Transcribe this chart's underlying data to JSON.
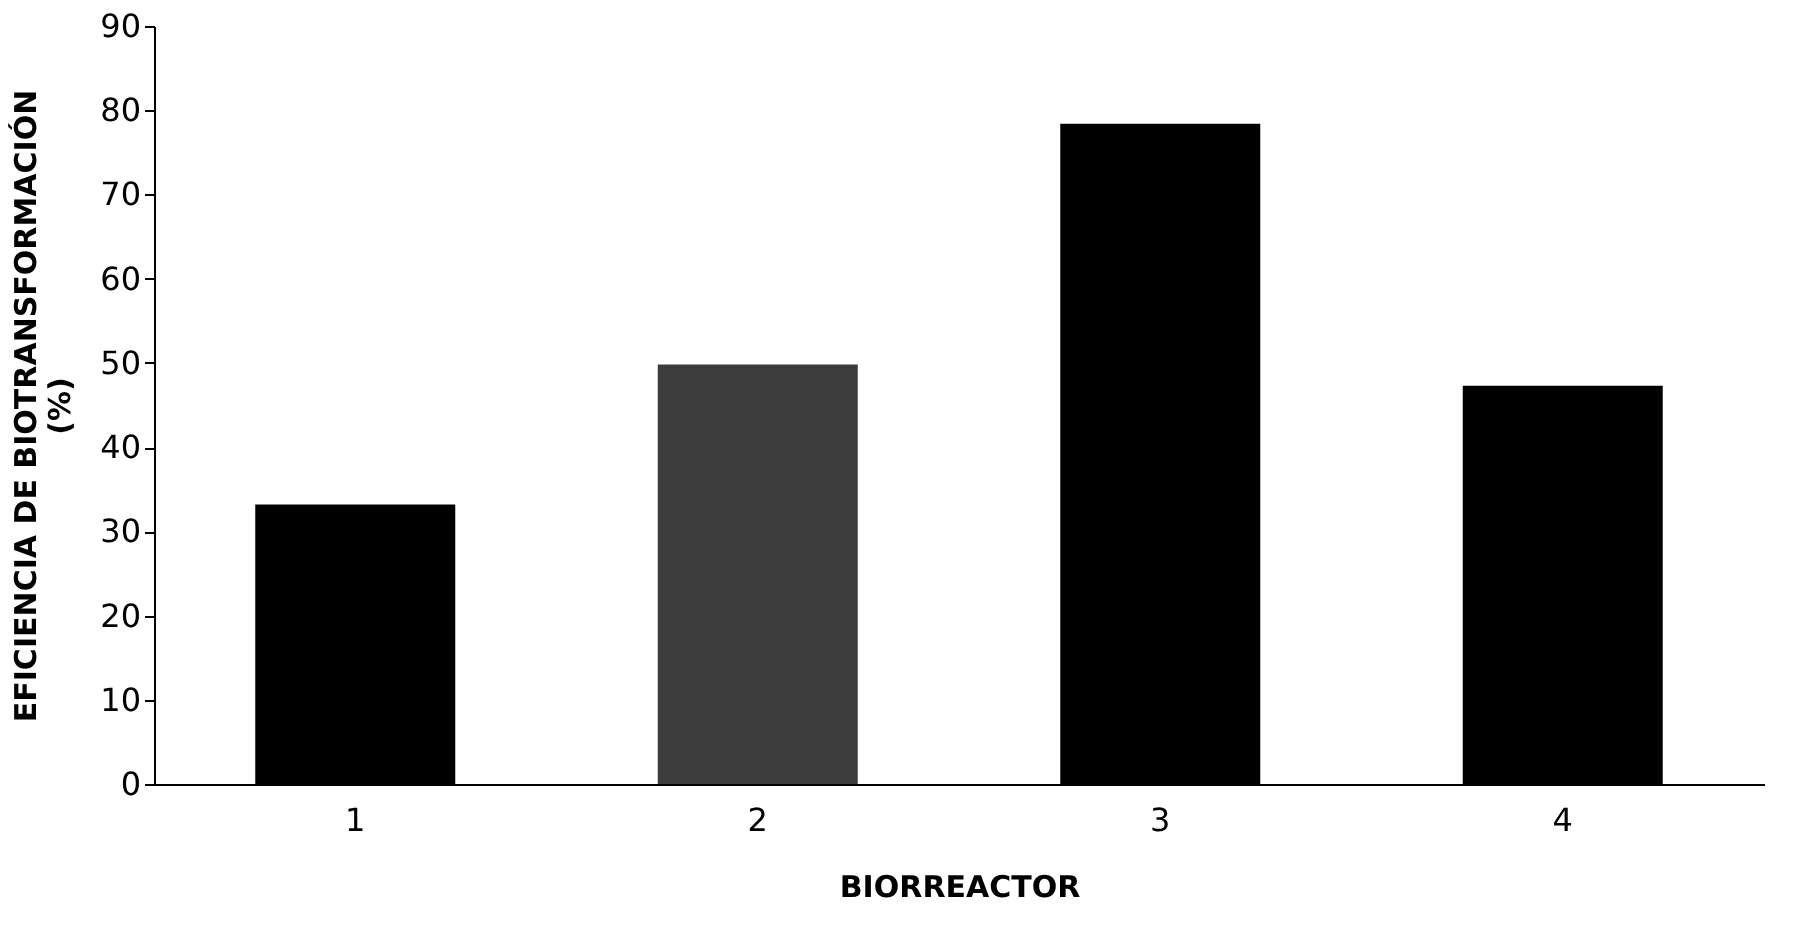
{
  "chart_data": {
    "type": "bar",
    "xlabel": "BIORREACTOR",
    "ylabel": "EFICIENCIA DE BIOTRANSFORMACIÓN (%)",
    "categories": [
      "1",
      "2",
      "3",
      "4"
    ],
    "values": [
      33.2,
      49.8,
      78.4,
      47.3
    ],
    "colors": [
      "#000000",
      "#3c3c3c",
      "#000000",
      "#000000"
    ],
    "ylim": [
      0,
      90
    ],
    "yticks": [
      0,
      10,
      20,
      30,
      40,
      50,
      60,
      70,
      80,
      90
    ],
    "grid": false
  }
}
